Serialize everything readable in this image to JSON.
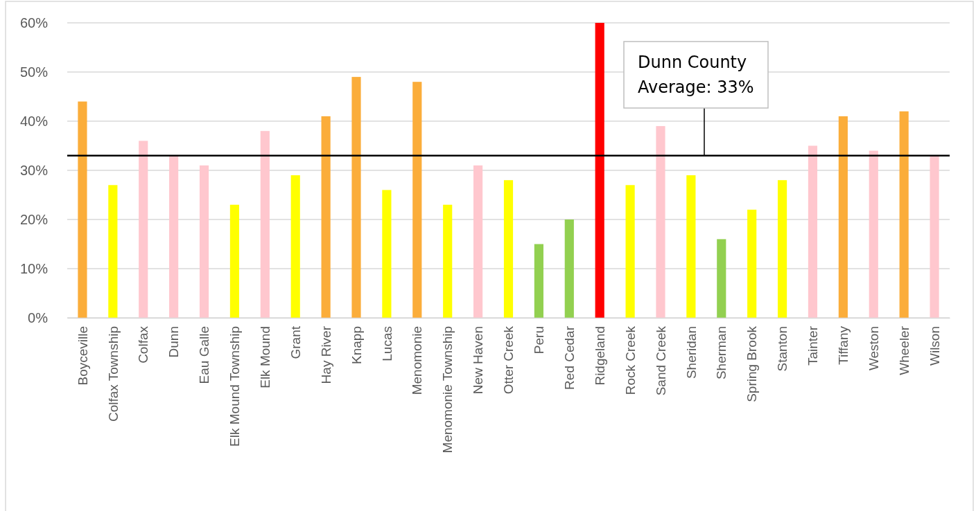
{
  "chart_data": {
    "type": "bar",
    "categories": [
      "Boyceville",
      "Colfax Township",
      "Colfax",
      "Dunn",
      "Eau Galle",
      "Elk Mound Township",
      "Elk Mound",
      "Grant",
      "Hay River",
      "Knapp",
      "Lucas",
      "Menomonie",
      "Menomonie Township",
      "New Haven",
      "Otter Creek",
      "Peru",
      "Red Cedar",
      "Ridgeland",
      "Rock Creek",
      "Sand Creek",
      "Sheridan",
      "Sherman",
      "Spring Brook",
      "Stanton",
      "Tainter",
      "Tiffany",
      "Weston",
      "Wheeler",
      "Wilson"
    ],
    "values": [
      44,
      27,
      36,
      33,
      31,
      23,
      38,
      29,
      41,
      49,
      26,
      48,
      23,
      31,
      28,
      15,
      20,
      60,
      27,
      39,
      29,
      16,
      22,
      28,
      35,
      41,
      34,
      42,
      33
    ],
    "colors": [
      "#fbad3a",
      "#ffff00",
      "#ffc7ce",
      "#ffc7ce",
      "#ffc7ce",
      "#ffff00",
      "#ffc7ce",
      "#ffff00",
      "#fbad3a",
      "#fbad3a",
      "#ffff00",
      "#fbad3a",
      "#ffff00",
      "#ffc7ce",
      "#ffff00",
      "#92d050",
      "#92d050",
      "#ff0000",
      "#ffff00",
      "#ffc7ce",
      "#ffff00",
      "#92d050",
      "#ffff00",
      "#ffff00",
      "#ffc7ce",
      "#fbad3a",
      "#ffc7ce",
      "#fbad3a",
      "#ffc7ce"
    ],
    "ylim": [
      0,
      60
    ],
    "yticks": [
      {
        "value": 0,
        "label": "0%"
      },
      {
        "value": 10,
        "label": "10%"
      },
      {
        "value": 20,
        "label": "20%"
      },
      {
        "value": 30,
        "label": "30%"
      },
      {
        "value": 40,
        "label": "40%"
      },
      {
        "value": 50,
        "label": "50%"
      },
      {
        "value": 60,
        "label": "60%"
      }
    ],
    "grid": "y",
    "ref_lines": [
      {
        "axis": "y",
        "value": 33,
        "label": "Dunn County Average: 33%",
        "color": "#000000"
      }
    ]
  }
}
